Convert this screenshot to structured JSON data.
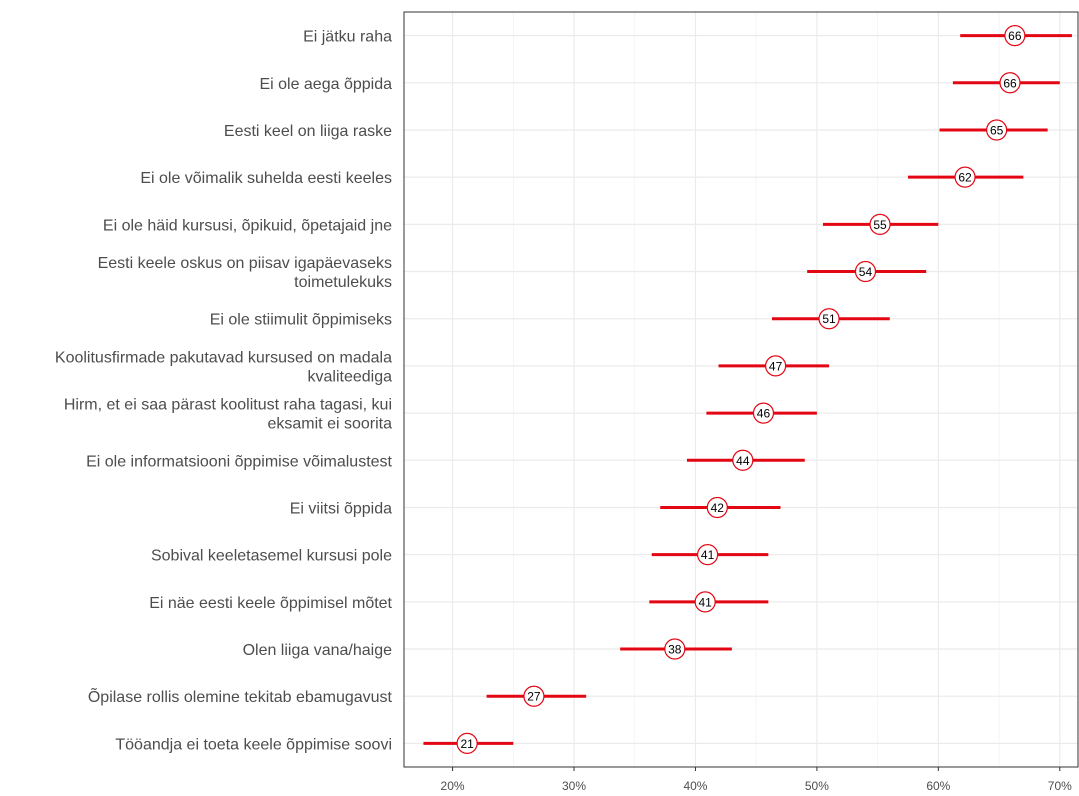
{
  "chart_data": {
    "type": "dot-errorbar",
    "title": "",
    "xlabel": "",
    "ylabel": "",
    "xlim": [
      16,
      71.5
    ],
    "x_ticks": [
      {
        "value": 20,
        "label": "20%"
      },
      {
        "value": 30,
        "label": "30%"
      },
      {
        "value": 40,
        "label": "40%"
      },
      {
        "value": 50,
        "label": "50%"
      },
      {
        "value": 60,
        "label": "60%"
      },
      {
        "value": 70,
        "label": "70%"
      }
    ],
    "grid": true,
    "colors": {
      "errorbar": "#e30613",
      "point_fill": "#ffffff",
      "point_stroke": "#e30613",
      "grid": "#ebebeb"
    },
    "items": [
      {
        "label": [
          "Ei jätku raha"
        ],
        "value": 66.3,
        "display": "66",
        "low": 61.8,
        "high": 71.0
      },
      {
        "label": [
          "Ei ole aega õppida"
        ],
        "value": 65.9,
        "display": "66",
        "low": 61.2,
        "high": 70.0
      },
      {
        "label": [
          "Eesti keel on liiga raske"
        ],
        "value": 64.8,
        "display": "65",
        "low": 60.1,
        "high": 69.0
      },
      {
        "label": [
          "Ei ole võimalik suhelda eesti keeles"
        ],
        "value": 62.2,
        "display": "62",
        "low": 57.5,
        "high": 67.0
      },
      {
        "label": [
          "Ei ole häid kursusi, õpikuid, õpetajaid jne"
        ],
        "value": 55.2,
        "display": "55",
        "low": 50.5,
        "high": 60.0
      },
      {
        "label": [
          "Eesti keele oskus on piisav igapäevaseks",
          "toimetulekuks"
        ],
        "value": 54.0,
        "display": "54",
        "low": 49.2,
        "high": 59.0
      },
      {
        "label": [
          "Ei ole stiimulit õppimiseks"
        ],
        "value": 51.0,
        "display": "51",
        "low": 46.3,
        "high": 56.0
      },
      {
        "label": [
          "Koolitusfirmade pakutavad kursused on madala",
          "kvaliteediga"
        ],
        "value": 46.6,
        "display": "47",
        "low": 41.9,
        "high": 51.0
      },
      {
        "label": [
          "Hirm, et ei saa pärast koolitust raha tagasi, kui",
          "eksamit ei soorita"
        ],
        "value": 45.6,
        "display": "46",
        "low": 40.9,
        "high": 50.0
      },
      {
        "label": [
          "Ei ole informatsiooni õppimise võimalustest"
        ],
        "value": 43.9,
        "display": "44",
        "low": 39.3,
        "high": 49.0
      },
      {
        "label": [
          "Ei viitsi õppida"
        ],
        "value": 41.8,
        "display": "42",
        "low": 37.1,
        "high": 47.0
      },
      {
        "label": [
          "Sobival keeletasemel kursusi pole"
        ],
        "value": 41.0,
        "display": "41",
        "low": 36.4,
        "high": 46.0
      },
      {
        "label": [
          "Ei näe eesti keele õppimisel mõtet"
        ],
        "value": 40.8,
        "display": "41",
        "low": 36.2,
        "high": 46.0
      },
      {
        "label": [
          "Olen liiga vana/haige"
        ],
        "value": 38.3,
        "display": "38",
        "low": 33.8,
        "high": 43.0
      },
      {
        "label": [
          "Õpilase rollis olemine tekitab ebamugavust"
        ],
        "value": 26.7,
        "display": "27",
        "low": 22.8,
        "high": 31.0
      },
      {
        "label": [
          "Tööandja ei toeta keele õppimise soovi"
        ],
        "value": 21.2,
        "display": "21",
        "low": 17.6,
        "high": 25.0
      }
    ]
  }
}
